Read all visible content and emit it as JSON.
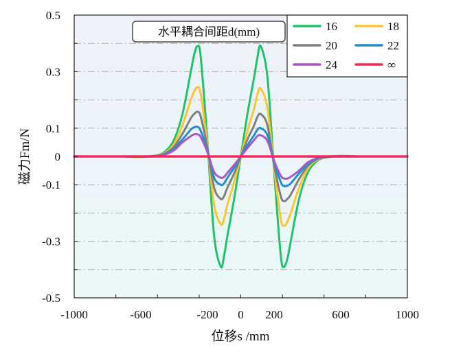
{
  "chart_data": {
    "type": "line",
    "title": "",
    "annotation": "水平耦合间距d(mm)",
    "xlabel": "位移s /mm",
    "ylabel": "磁力Fm/N",
    "xlim": [
      -1000,
      1000
    ],
    "ylim": [
      -0.5,
      0.5
    ],
    "xticks": [
      -1000,
      -600,
      -200,
      0,
      200,
      600,
      1000
    ],
    "xtick_labels": [
      "-1000",
      "-600",
      "-200",
      "0",
      "200",
      "600",
      "1000"
    ],
    "yticks": [
      0.5,
      0.3,
      0.1,
      0,
      -0.1,
      -0.3,
      -0.5
    ],
    "ytick_labels": [
      "0.5",
      "0.3",
      "0.1",
      "0",
      "-0.1",
      "-0.3",
      "-0.5"
    ],
    "grid": "horizontal dash-dot",
    "legend_position": "top-right",
    "x": [
      -1000,
      -900,
      -800,
      -700,
      -600,
      -500,
      -450,
      -400,
      -350,
      -300,
      -280,
      -260,
      -240,
      -200,
      -160,
      -120,
      -100,
      -80,
      -40,
      0,
      40,
      80,
      100,
      120,
      160,
      200,
      240,
      260,
      280,
      300,
      350,
      400,
      450,
      500,
      600,
      700,
      800,
      900,
      1000
    ],
    "series": [
      {
        "name": "16",
        "color": "#1fc46a",
        "values": [
          0,
          0,
          0,
          0,
          -0.002,
          0.005,
          0.02,
          0.06,
          0.15,
          0.3,
          0.36,
          0.39,
          0.35,
          0.05,
          -0.28,
          -0.39,
          -0.35,
          -0.28,
          -0.15,
          0.0,
          0.15,
          0.28,
          0.35,
          0.39,
          0.28,
          -0.05,
          -0.35,
          -0.39,
          -0.36,
          -0.3,
          -0.15,
          -0.06,
          -0.02,
          -0.005,
          0.002,
          0,
          0,
          0,
          0
        ]
      },
      {
        "name": "18",
        "color": "#ffc530",
        "values": [
          0,
          0,
          0,
          0,
          -0.002,
          0.004,
          0.015,
          0.045,
          0.11,
          0.2,
          0.23,
          0.245,
          0.22,
          0.04,
          -0.17,
          -0.24,
          -0.22,
          -0.17,
          -0.09,
          0.0,
          0.09,
          0.17,
          0.22,
          0.24,
          0.17,
          -0.04,
          -0.22,
          -0.245,
          -0.23,
          -0.2,
          -0.11,
          -0.045,
          -0.015,
          -0.004,
          0.002,
          0,
          0,
          0,
          0
        ]
      },
      {
        "name": "20",
        "color": "#7f7f7f",
        "values": [
          0,
          0,
          0,
          0,
          -0.001,
          0.003,
          0.012,
          0.035,
          0.08,
          0.135,
          0.15,
          0.158,
          0.14,
          0.03,
          -0.11,
          -0.15,
          -0.14,
          -0.11,
          -0.06,
          0.0,
          0.06,
          0.11,
          0.14,
          0.15,
          0.11,
          -0.03,
          -0.14,
          -0.158,
          -0.15,
          -0.135,
          -0.08,
          -0.035,
          -0.012,
          -0.003,
          0.001,
          0,
          0,
          0,
          0
        ]
      },
      {
        "name": "22",
        "color": "#1f8fd0",
        "values": [
          0,
          0,
          0,
          0,
          -0.001,
          0.002,
          0.01,
          0.028,
          0.06,
          0.095,
          0.103,
          0.105,
          0.09,
          0.02,
          -0.075,
          -0.1,
          -0.095,
          -0.075,
          -0.04,
          0.0,
          0.04,
          0.075,
          0.095,
          0.1,
          0.075,
          -0.02,
          -0.09,
          -0.105,
          -0.103,
          -0.095,
          -0.06,
          -0.028,
          -0.01,
          -0.002,
          0.001,
          0,
          0,
          0,
          0
        ]
      },
      {
        "name": "24",
        "color": "#a65bc4",
        "values": [
          0,
          0,
          0,
          0,
          -0.001,
          0.002,
          0.008,
          0.022,
          0.05,
          0.072,
          0.078,
          0.078,
          0.068,
          0.015,
          -0.055,
          -0.075,
          -0.072,
          -0.058,
          -0.03,
          0.0,
          0.03,
          0.058,
          0.072,
          0.075,
          0.055,
          -0.015,
          -0.068,
          -0.078,
          -0.078,
          -0.072,
          -0.05,
          -0.022,
          -0.008,
          -0.002,
          0.001,
          0,
          0,
          0,
          0
        ]
      },
      {
        "name": "∞",
        "color": "#ee2b5a",
        "values": [
          0,
          0,
          0,
          0,
          0,
          0,
          0,
          0,
          0,
          0,
          0,
          0,
          0,
          0,
          0,
          0,
          0,
          0,
          0,
          0,
          0,
          0,
          0,
          0,
          0,
          0,
          0,
          0,
          0,
          0,
          0,
          0,
          0,
          0,
          0,
          0,
          0,
          0,
          0
        ]
      }
    ]
  }
}
